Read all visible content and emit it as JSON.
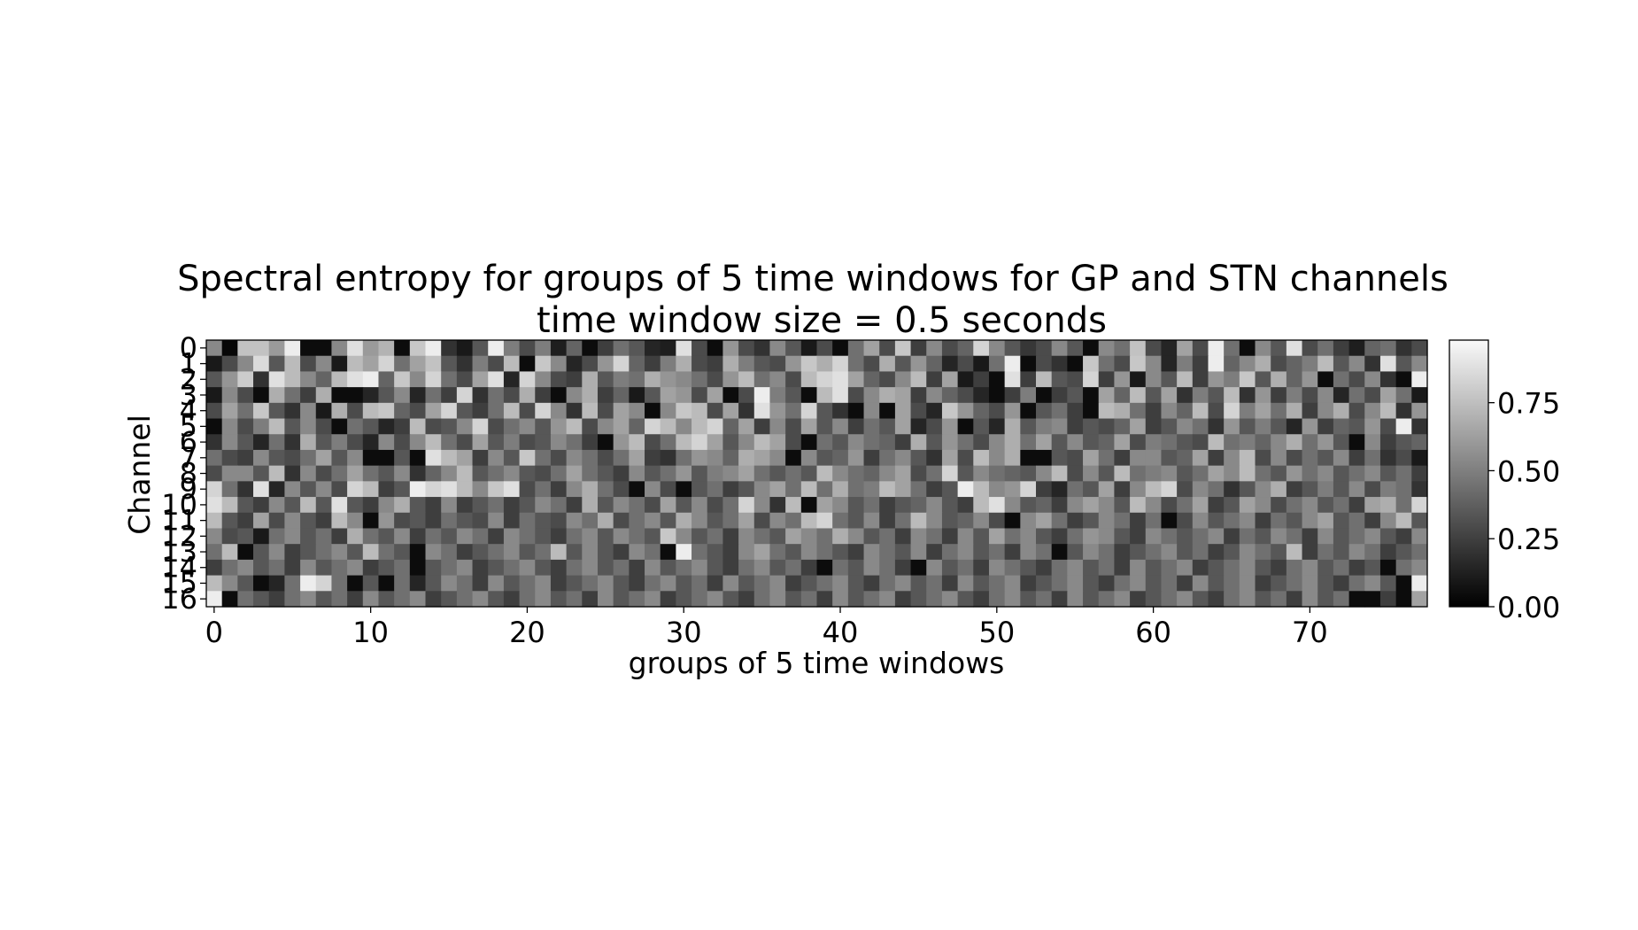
{
  "chart_data": {
    "type": "heatmap",
    "title": "Spectral entropy for groups of 5 time windows for GP and STN channels",
    "subtitle": "time window size = 0.5 seconds",
    "xlabel": "groups of 5 time windows",
    "ylabel": "Channel",
    "rows": 17,
    "cols": 78,
    "x_ticks": [
      0,
      10,
      20,
      30,
      40,
      50,
      60,
      70
    ],
    "y_ticks": [
      0,
      1,
      2,
      3,
      4,
      5,
      6,
      7,
      8,
      9,
      10,
      11,
      12,
      13,
      14,
      15,
      16
    ],
    "colormap": "gray",
    "colorbar": {
      "range": [
        0,
        0.98
      ],
      "ticks": [
        0.0,
        0.25,
        0.5,
        0.75
      ],
      "tick_labels": [
        "0.00",
        "0.25",
        "0.50",
        "0.75"
      ]
    },
    "values": [
      [
        0.55,
        0.03,
        0.78,
        0.78,
        0.62,
        0.95,
        0.05,
        0.05,
        0.55,
        0.9,
        0.62,
        0.72,
        0.05,
        0.8,
        0.95,
        0.2,
        0.1,
        0.35,
        0.95,
        0.5,
        0.3,
        0.5,
        0.12,
        0.4,
        0.05,
        0.25,
        0.45,
        0.35,
        0.15,
        0.12,
        0.9,
        0.3,
        0.05,
        0.6,
        0.3,
        0.2,
        0.55,
        0.35,
        0.1,
        0.3,
        0.05,
        0.45,
        0.65,
        0.3,
        0.8,
        0.25,
        0.55,
        0.3,
        0.4,
        0.85,
        0.55,
        0.35,
        0.22,
        0.3,
        0.55,
        0.35,
        0.05,
        0.55,
        0.45,
        0.78,
        0.3,
        0.15,
        0.65,
        0.3,
        0.95,
        0.45,
        0.05,
        0.55,
        0.35,
        0.9,
        0.3,
        0.45,
        0.25,
        0.12,
        0.4,
        0.45,
        0.2,
        0.3
      ],
      [
        0.1,
        0.3,
        0.55,
        0.88,
        0.35,
        0.75,
        0.3,
        0.55,
        0.1,
        0.75,
        0.65,
        0.85,
        0.45,
        0.65,
        0.78,
        0.35,
        0.2,
        0.5,
        0.3,
        0.75,
        0.05,
        0.8,
        0.55,
        0.15,
        0.3,
        0.6,
        0.85,
        0.4,
        0.25,
        0.5,
        0.7,
        0.3,
        0.25,
        0.7,
        0.5,
        0.35,
        0.3,
        0.6,
        0.8,
        0.7,
        0.85,
        0.45,
        0.3,
        0.7,
        0.35,
        0.6,
        0.4,
        0.15,
        0.3,
        0.1,
        0.45,
        0.95,
        0.05,
        0.3,
        0.2,
        0.05,
        0.8,
        0.45,
        0.3,
        0.8,
        0.55,
        0.15,
        0.5,
        0.25,
        0.95,
        0.4,
        0.55,
        0.7,
        0.3,
        0.4,
        0.5,
        0.75,
        0.35,
        0.55,
        0.2,
        0.9,
        0.35,
        0.55
      ],
      [
        0.35,
        0.6,
        0.82,
        0.2,
        0.9,
        0.75,
        0.55,
        0.4,
        0.75,
        0.9,
        0.95,
        0.4,
        0.8,
        0.55,
        0.85,
        0.45,
        0.3,
        0.65,
        0.9,
        0.15,
        0.85,
        0.55,
        0.3,
        0.25,
        0.7,
        0.35,
        0.5,
        0.45,
        0.7,
        0.6,
        0.55,
        0.45,
        0.3,
        0.6,
        0.75,
        0.45,
        0.55,
        0.3,
        0.75,
        0.85,
        0.9,
        0.65,
        0.4,
        0.3,
        0.55,
        0.75,
        0.25,
        0.65,
        0.1,
        0.25,
        0.05,
        0.9,
        0.25,
        0.75,
        0.35,
        0.3,
        0.85,
        0.25,
        0.6,
        0.1,
        0.55,
        0.35,
        0.75,
        0.25,
        0.6,
        0.5,
        0.8,
        0.35,
        0.7,
        0.4,
        0.6,
        0.05,
        0.45,
        0.3,
        0.55,
        0.2,
        0.05,
        0.95
      ],
      [
        0.1,
        0.55,
        0.3,
        0.05,
        0.7,
        0.45,
        0.25,
        0.7,
        0.05,
        0.05,
        0.15,
        0.35,
        0.55,
        0.15,
        0.45,
        0.25,
        0.85,
        0.2,
        0.45,
        0.3,
        0.7,
        0.25,
        0.05,
        0.55,
        0.7,
        0.25,
        0.4,
        0.1,
        0.35,
        0.65,
        0.6,
        0.3,
        0.65,
        0.05,
        0.3,
        0.95,
        0.5,
        0.35,
        0.05,
        0.75,
        0.9,
        0.3,
        0.55,
        0.7,
        0.65,
        0.25,
        0.55,
        0.4,
        0.3,
        0.15,
        0.05,
        0.25,
        0.5,
        0.05,
        0.25,
        0.35,
        0.05,
        0.65,
        0.4,
        0.75,
        0.35,
        0.65,
        0.2,
        0.5,
        0.35,
        0.75,
        0.2,
        0.6,
        0.25,
        0.5,
        0.3,
        0.55,
        0.15,
        0.45,
        0.3,
        0.65,
        0.45,
        0.1
      ],
      [
        0.3,
        0.65,
        0.45,
        0.8,
        0.35,
        0.2,
        0.55,
        0.1,
        0.7,
        0.3,
        0.75,
        0.8,
        0.4,
        0.3,
        0.65,
        0.85,
        0.35,
        0.25,
        0.45,
        0.75,
        0.3,
        0.85,
        0.55,
        0.2,
        0.75,
        0.3,
        0.65,
        0.55,
        0.05,
        0.55,
        0.8,
        0.75,
        0.3,
        0.65,
        0.2,
        0.9,
        0.6,
        0.45,
        0.85,
        0.35,
        0.2,
        0.05,
        0.55,
        0.05,
        0.65,
        0.3,
        0.15,
        0.8,
        0.6,
        0.4,
        0.3,
        0.6,
        0.05,
        0.35,
        0.45,
        0.25,
        0.05,
        0.75,
        0.7,
        0.45,
        0.25,
        0.55,
        0.4,
        0.75,
        0.3,
        0.85,
        0.5,
        0.65,
        0.45,
        0.7,
        0.25,
        0.55,
        0.7,
        0.3,
        0.55,
        0.75,
        0.2,
        0.6
      ],
      [
        0.05,
        0.55,
        0.3,
        0.5,
        0.75,
        0.35,
        0.55,
        0.3,
        0.05,
        0.45,
        0.35,
        0.15,
        0.25,
        0.75,
        0.3,
        0.35,
        0.55,
        0.85,
        0.3,
        0.45,
        0.55,
        0.35,
        0.6,
        0.75,
        0.3,
        0.55,
        0.65,
        0.4,
        0.85,
        0.75,
        0.55,
        0.75,
        0.85,
        0.4,
        0.65,
        0.25,
        0.55,
        0.3,
        0.65,
        0.35,
        0.55,
        0.25,
        0.45,
        0.35,
        0.65,
        0.15,
        0.3,
        0.6,
        0.05,
        0.35,
        0.15,
        0.7,
        0.35,
        0.5,
        0.55,
        0.25,
        0.35,
        0.3,
        0.4,
        0.65,
        0.25,
        0.35,
        0.55,
        0.45,
        0.2,
        0.6,
        0.35,
        0.5,
        0.35,
        0.15,
        0.6,
        0.25,
        0.4,
        0.35,
        0.6,
        0.3,
        0.95,
        0.2
      ],
      [
        0.2,
        0.55,
        0.35,
        0.15,
        0.45,
        0.2,
        0.7,
        0.35,
        0.5,
        0.3,
        0.15,
        0.55,
        0.3,
        0.55,
        0.75,
        0.45,
        0.3,
        0.65,
        0.35,
        0.5,
        0.3,
        0.35,
        0.55,
        0.45,
        0.25,
        0.05,
        0.6,
        0.75,
        0.3,
        0.45,
        0.75,
        0.85,
        0.65,
        0.35,
        0.55,
        0.75,
        0.65,
        0.3,
        0.05,
        0.45,
        0.35,
        0.55,
        0.45,
        0.4,
        0.25,
        0.7,
        0.35,
        0.6,
        0.45,
        0.3,
        0.55,
        0.7,
        0.45,
        0.65,
        0.35,
        0.55,
        0.35,
        0.4,
        0.65,
        0.3,
        0.5,
        0.45,
        0.35,
        0.3,
        0.75,
        0.45,
        0.5,
        0.4,
        0.55,
        0.7,
        0.45,
        0.6,
        0.35,
        0.05,
        0.55,
        0.25,
        0.35,
        0.4
      ],
      [
        0.45,
        0.3,
        0.25,
        0.55,
        0.35,
        0.3,
        0.45,
        0.65,
        0.35,
        0.55,
        0.05,
        0.05,
        0.35,
        0.05,
        0.9,
        0.75,
        0.65,
        0.25,
        0.55,
        0.35,
        0.8,
        0.45,
        0.3,
        0.55,
        0.45,
        0.3,
        0.45,
        0.65,
        0.25,
        0.2,
        0.45,
        0.6,
        0.55,
        0.4,
        0.7,
        0.65,
        0.55,
        0.05,
        0.55,
        0.35,
        0.4,
        0.6,
        0.25,
        0.45,
        0.55,
        0.35,
        0.2,
        0.65,
        0.3,
        0.75,
        0.55,
        0.7,
        0.05,
        0.05,
        0.35,
        0.3,
        0.65,
        0.45,
        0.25,
        0.55,
        0.55,
        0.35,
        0.4,
        0.65,
        0.25,
        0.55,
        0.75,
        0.3,
        0.55,
        0.3,
        0.45,
        0.35,
        0.55,
        0.25,
        0.45,
        0.2,
        0.3,
        0.1
      ],
      [
        0.3,
        0.55,
        0.55,
        0.35,
        0.75,
        0.2,
        0.55,
        0.3,
        0.45,
        0.65,
        0.45,
        0.35,
        0.55,
        0.2,
        0.4,
        0.55,
        0.75,
        0.35,
        0.45,
        0.55,
        0.35,
        0.3,
        0.45,
        0.65,
        0.45,
        0.35,
        0.25,
        0.55,
        0.35,
        0.45,
        0.6,
        0.35,
        0.5,
        0.55,
        0.65,
        0.45,
        0.35,
        0.45,
        0.35,
        0.75,
        0.55,
        0.45,
        0.4,
        0.55,
        0.65,
        0.3,
        0.45,
        0.85,
        0.35,
        0.55,
        0.45,
        0.4,
        0.35,
        0.55,
        0.75,
        0.3,
        0.55,
        0.35,
        0.75,
        0.45,
        0.5,
        0.55,
        0.35,
        0.45,
        0.65,
        0.55,
        0.75,
        0.45,
        0.35,
        0.6,
        0.45,
        0.55,
        0.35,
        0.45,
        0.55,
        0.35,
        0.45,
        0.25
      ],
      [
        0.85,
        0.45,
        0.2,
        0.9,
        0.15,
        0.55,
        0.35,
        0.55,
        0.3,
        0.85,
        0.75,
        0.25,
        0.35,
        0.95,
        0.85,
        0.9,
        0.75,
        0.55,
        0.8,
        0.9,
        0.3,
        0.45,
        0.25,
        0.55,
        0.7,
        0.45,
        0.3,
        0.05,
        0.55,
        0.3,
        0.05,
        0.35,
        0.45,
        0.25,
        0.35,
        0.55,
        0.65,
        0.45,
        0.75,
        0.45,
        0.7,
        0.45,
        0.5,
        0.75,
        0.65,
        0.45,
        0.25,
        0.35,
        0.95,
        0.75,
        0.55,
        0.6,
        0.85,
        0.25,
        0.15,
        0.45,
        0.35,
        0.65,
        0.25,
        0.55,
        0.75,
        0.85,
        0.3,
        0.55,
        0.45,
        0.2,
        0.35,
        0.55,
        0.7,
        0.25,
        0.35,
        0.5,
        0.35,
        0.55,
        0.3,
        0.5,
        0.45,
        0.2
      ],
      [
        0.9,
        0.75,
        0.35,
        0.25,
        0.55,
        0.35,
        0.75,
        0.35,
        0.9,
        0.35,
        0.25,
        0.55,
        0.7,
        0.35,
        0.25,
        0.55,
        0.25,
        0.35,
        0.45,
        0.25,
        0.35,
        0.55,
        0.45,
        0.25,
        0.7,
        0.35,
        0.55,
        0.45,
        0.3,
        0.65,
        0.35,
        0.55,
        0.3,
        0.45,
        0.85,
        0.55,
        0.2,
        0.75,
        0.05,
        0.65,
        0.55,
        0.35,
        0.45,
        0.25,
        0.35,
        0.4,
        0.55,
        0.35,
        0.25,
        0.75,
        0.9,
        0.55,
        0.35,
        0.4,
        0.25,
        0.55,
        0.65,
        0.55,
        0.35,
        0.75,
        0.55,
        0.3,
        0.45,
        0.65,
        0.25,
        0.35,
        0.65,
        0.55,
        0.3,
        0.45,
        0.55,
        0.35,
        0.45,
        0.25,
        0.65,
        0.7,
        0.45,
        0.85
      ],
      [
        0.75,
        0.35,
        0.25,
        0.65,
        0.3,
        0.55,
        0.35,
        0.25,
        0.75,
        0.55,
        0.05,
        0.6,
        0.3,
        0.35,
        0.25,
        0.45,
        0.35,
        0.3,
        0.55,
        0.25,
        0.45,
        0.35,
        0.3,
        0.55,
        0.45,
        0.7,
        0.3,
        0.45,
        0.55,
        0.35,
        0.7,
        0.55,
        0.35,
        0.45,
        0.65,
        0.3,
        0.55,
        0.45,
        0.75,
        0.85,
        0.45,
        0.35,
        0.55,
        0.25,
        0.45,
        0.75,
        0.55,
        0.35,
        0.4,
        0.55,
        0.3,
        0.05,
        0.55,
        0.65,
        0.45,
        0.25,
        0.35,
        0.55,
        0.45,
        0.25,
        0.45,
        0.05,
        0.3,
        0.55,
        0.35,
        0.45,
        0.55,
        0.25,
        0.45,
        0.35,
        0.55,
        0.65,
        0.35,
        0.45,
        0.25,
        0.55,
        0.75,
        0.35
      ],
      [
        0.55,
        0.3,
        0.35,
        0.1,
        0.45,
        0.55,
        0.35,
        0.45,
        0.25,
        0.7,
        0.45,
        0.35,
        0.55,
        0.25,
        0.45,
        0.35,
        0.55,
        0.45,
        0.25,
        0.55,
        0.45,
        0.35,
        0.25,
        0.45,
        0.55,
        0.35,
        0.55,
        0.45,
        0.35,
        0.8,
        0.55,
        0.35,
        0.45,
        0.25,
        0.55,
        0.45,
        0.35,
        0.65,
        0.55,
        0.45,
        0.7,
        0.55,
        0.35,
        0.45,
        0.25,
        0.55,
        0.45,
        0.25,
        0.55,
        0.35,
        0.65,
        0.45,
        0.55,
        0.35,
        0.25,
        0.45,
        0.6,
        0.55,
        0.35,
        0.25,
        0.55,
        0.45,
        0.35,
        0.45,
        0.55,
        0.25,
        0.45,
        0.35,
        0.55,
        0.45,
        0.25,
        0.55,
        0.35,
        0.45,
        0.55,
        0.35,
        0.25,
        0.55
      ],
      [
        0.45,
        0.75,
        0.05,
        0.35,
        0.55,
        0.25,
        0.35,
        0.45,
        0.55,
        0.35,
        0.75,
        0.45,
        0.35,
        0.05,
        0.55,
        0.45,
        0.25,
        0.35,
        0.45,
        0.55,
        0.35,
        0.45,
        0.75,
        0.35,
        0.55,
        0.35,
        0.25,
        0.55,
        0.45,
        0.05,
        0.95,
        0.45,
        0.35,
        0.25,
        0.55,
        0.65,
        0.45,
        0.35,
        0.55,
        0.45,
        0.35,
        0.25,
        0.55,
        0.45,
        0.35,
        0.55,
        0.25,
        0.45,
        0.55,
        0.35,
        0.45,
        0.25,
        0.55,
        0.45,
        0.05,
        0.35,
        0.55,
        0.45,
        0.25,
        0.35,
        0.45,
        0.55,
        0.35,
        0.45,
        0.25,
        0.35,
        0.55,
        0.45,
        0.35,
        0.75,
        0.25,
        0.45,
        0.35,
        0.55,
        0.45,
        0.25,
        0.35,
        0.45
      ],
      [
        0.25,
        0.45,
        0.55,
        0.35,
        0.45,
        0.25,
        0.55,
        0.35,
        0.45,
        0.55,
        0.25,
        0.35,
        0.45,
        0.05,
        0.35,
        0.45,
        0.55,
        0.25,
        0.35,
        0.45,
        0.55,
        0.35,
        0.25,
        0.45,
        0.55,
        0.35,
        0.45,
        0.25,
        0.55,
        0.35,
        0.45,
        0.55,
        0.35,
        0.25,
        0.45,
        0.55,
        0.35,
        0.45,
        0.25,
        0.05,
        0.45,
        0.35,
        0.55,
        0.45,
        0.25,
        0.05,
        0.55,
        0.35,
        0.45,
        0.25,
        0.55,
        0.45,
        0.35,
        0.25,
        0.45,
        0.55,
        0.35,
        0.45,
        0.25,
        0.55,
        0.35,
        0.45,
        0.55,
        0.25,
        0.35,
        0.45,
        0.55,
        0.35,
        0.25,
        0.45,
        0.55,
        0.35,
        0.45,
        0.25,
        0.35,
        0.05,
        0.45,
        0.55
      ],
      [
        0.75,
        0.55,
        0.35,
        0.05,
        0.15,
        0.45,
        0.95,
        0.85,
        0.45,
        0.05,
        0.35,
        0.05,
        0.45,
        0.15,
        0.35,
        0.55,
        0.45,
        0.25,
        0.55,
        0.35,
        0.45,
        0.55,
        0.25,
        0.35,
        0.45,
        0.55,
        0.35,
        0.25,
        0.45,
        0.55,
        0.35,
        0.45,
        0.25,
        0.55,
        0.35,
        0.45,
        0.55,
        0.25,
        0.35,
        0.45,
        0.55,
        0.35,
        0.25,
        0.45,
        0.55,
        0.35,
        0.45,
        0.25,
        0.55,
        0.35,
        0.45,
        0.55,
        0.25,
        0.35,
        0.45,
        0.55,
        0.35,
        0.25,
        0.45,
        0.55,
        0.35,
        0.45,
        0.25,
        0.55,
        0.35,
        0.45,
        0.55,
        0.25,
        0.35,
        0.45,
        0.55,
        0.35,
        0.25,
        0.45,
        0.55,
        0.35,
        0.05,
        0.95
      ],
      [
        0.95,
        0.05,
        0.45,
        0.35,
        0.25,
        0.45,
        0.55,
        0.35,
        0.45,
        0.25,
        0.55,
        0.35,
        0.45,
        0.55,
        0.25,
        0.35,
        0.45,
        0.55,
        0.35,
        0.25,
        0.45,
        0.55,
        0.35,
        0.45,
        0.25,
        0.55,
        0.35,
        0.45,
        0.55,
        0.25,
        0.35,
        0.45,
        0.55,
        0.35,
        0.25,
        0.45,
        0.55,
        0.35,
        0.45,
        0.25,
        0.55,
        0.35,
        0.45,
        0.55,
        0.25,
        0.35,
        0.45,
        0.55,
        0.35,
        0.25,
        0.45,
        0.55,
        0.35,
        0.45,
        0.25,
        0.55,
        0.35,
        0.45,
        0.55,
        0.25,
        0.35,
        0.45,
        0.55,
        0.35,
        0.25,
        0.45,
        0.55,
        0.35,
        0.45,
        0.25,
        0.55,
        0.35,
        0.45,
        0.05,
        0.05,
        0.25,
        0.05,
        0.65
      ]
    ]
  }
}
